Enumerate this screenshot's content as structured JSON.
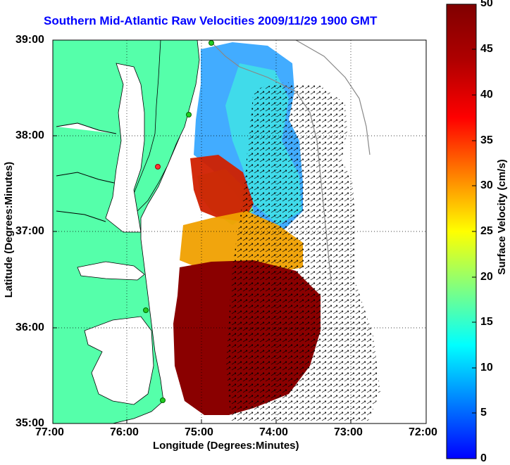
{
  "title": "Southern Mid-Atlantic Raw Velocities 2009/11/29 1900 GMT",
  "axes": {
    "xlabel": "Longitude (Degrees:Minutes)",
    "ylabel": "Latitude (Degrees:Minutes)",
    "x_ticks": [
      "77:00",
      "76:00",
      "75:00",
      "74:00",
      "73:00",
      "72:00"
    ],
    "y_ticks": [
      "39:00",
      "38:00",
      "37:00",
      "36:00",
      "35:00"
    ]
  },
  "colorbar": {
    "label": "Surface Velocity (cm/s)",
    "ticks": [
      "50",
      "45",
      "40",
      "35",
      "30",
      "25",
      "20",
      "15",
      "10",
      "5",
      "0"
    ]
  },
  "colors": {
    "title": "#0000ff",
    "land": "#55ffaa",
    "ocean": "#ffffff",
    "station": "#22cc22",
    "station_alt": "#ff3333"
  }
}
